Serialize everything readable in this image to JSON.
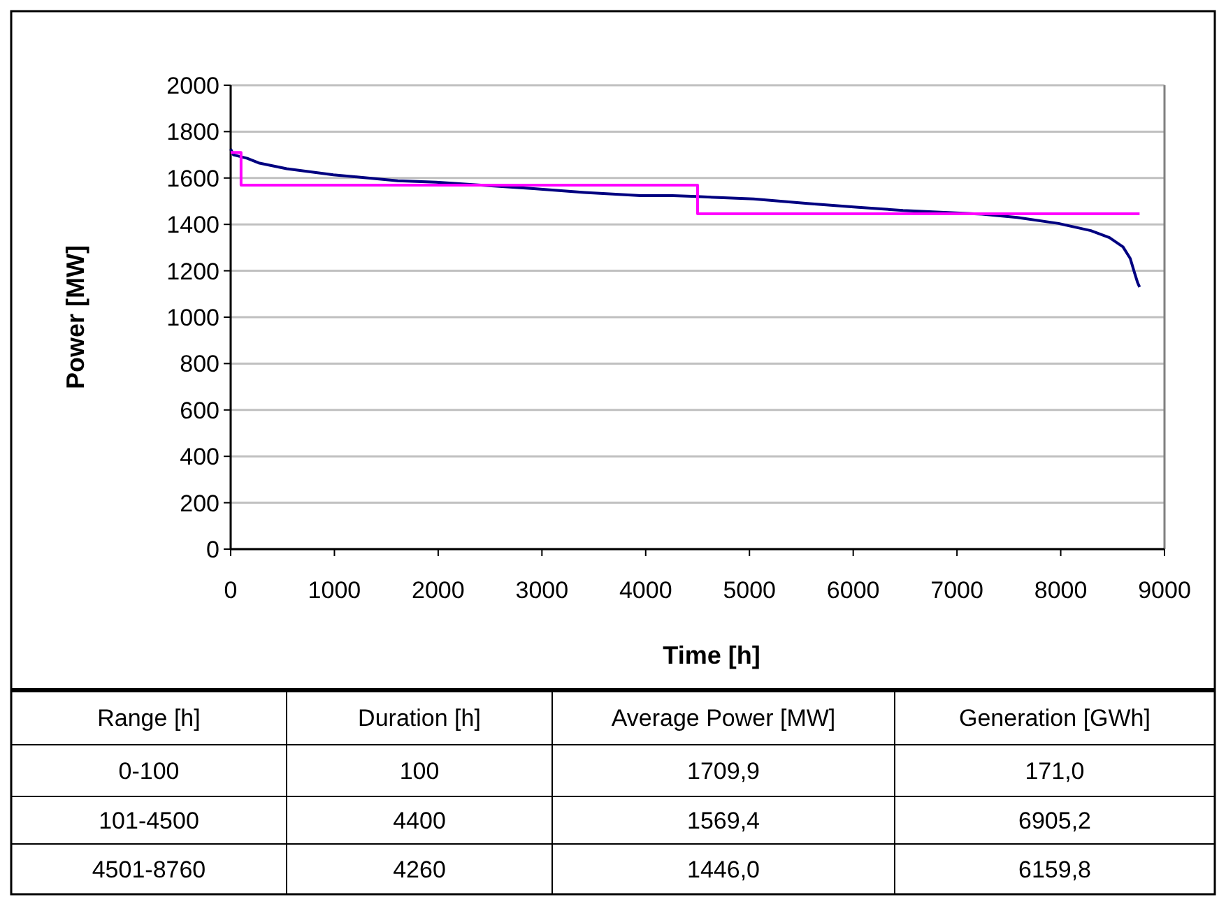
{
  "chart_data": {
    "type": "line",
    "xlabel": "Time [h]",
    "ylabel": "Power [MW]",
    "xlim": [
      0,
      9000
    ],
    "xticks": [
      0,
      1000,
      2000,
      3000,
      4000,
      5000,
      6000,
      7000,
      8000,
      9000
    ],
    "ylim": [
      0,
      2000
    ],
    "yticks": [
      0,
      200,
      400,
      600,
      800,
      1000,
      1200,
      1400,
      1600,
      1800,
      2000
    ],
    "grid": "y",
    "series": [
      {
        "color": "#000080",
        "x": [
          0,
          27,
          160,
          270,
          540,
          990,
          1610,
          1980,
          2920,
          3410,
          3950,
          4260,
          4490,
          5040,
          5560,
          6050,
          6480,
          7240,
          7580,
          7980,
          8290,
          8470,
          8600,
          8670,
          8710,
          8740,
          8760
        ],
        "values": [
          1725,
          1700,
          1685,
          1665,
          1640,
          1614,
          1588,
          1582,
          1554,
          1538,
          1524,
          1524,
          1520,
          1510,
          1490,
          1474,
          1460,
          1444,
          1430,
          1404,
          1373,
          1343,
          1303,
          1253,
          1193,
          1150,
          1130
        ]
      },
      {
        "type": "step",
        "color": "#ff00ff",
        "x": [
          0,
          100,
          4500,
          8760
        ],
        "values": [
          1709.9,
          1569.4,
          1446.0,
          1446.0
        ]
      }
    ],
    "annotations": [
      "Range [h]",
      "Duration [h]",
      "Average Power [MW]",
      "Generation [GWh]",
      "0-100",
      "100",
      "1709,9",
      "171,0",
      "101-4500",
      "4400",
      "1569,4",
      "6905,2",
      "4501-8760",
      "4260",
      "1446,0",
      "6159,8"
    ]
  }
}
